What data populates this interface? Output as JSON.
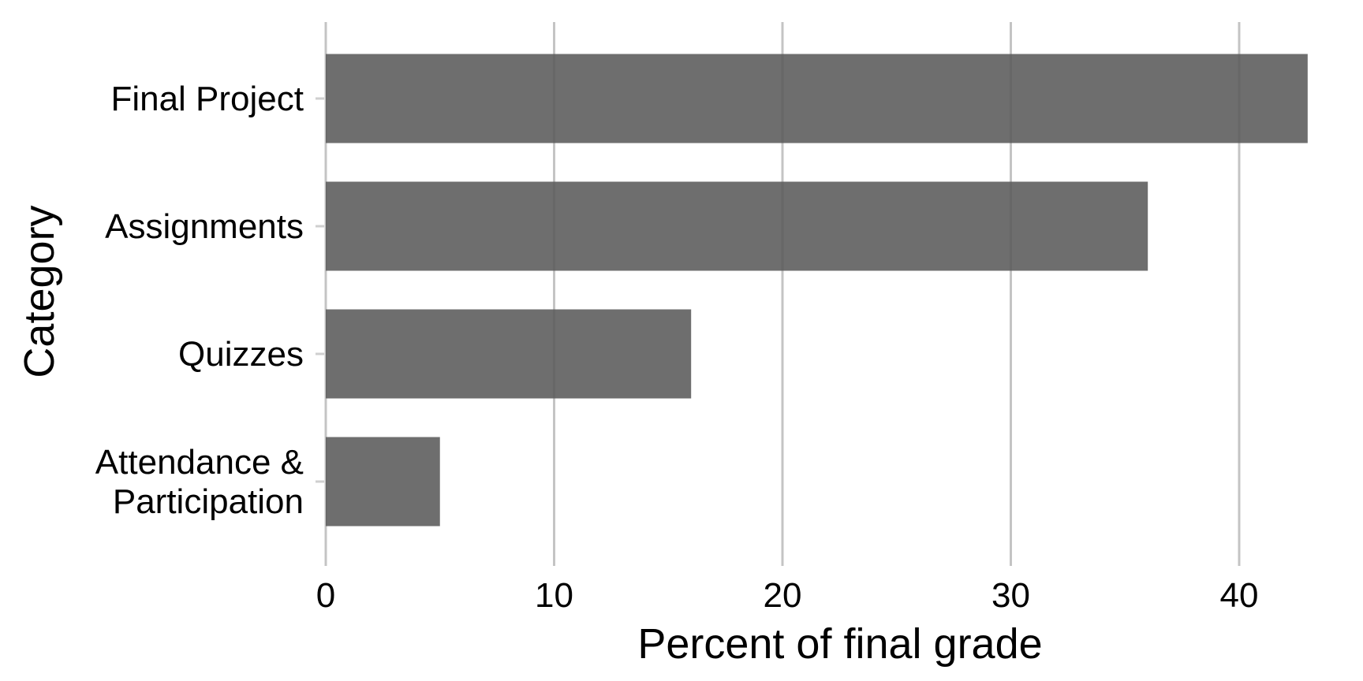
{
  "chart_data": {
    "type": "bar",
    "orientation": "horizontal",
    "categories": [
      [
        "Final Project"
      ],
      [
        "Assignments"
      ],
      [
        "Quizzes"
      ],
      [
        "Attendance &",
        "Participation"
      ]
    ],
    "values": [
      43,
      36,
      16,
      5
    ],
    "title": "",
    "xlabel": "Percent of final grade",
    "ylabel": "Category",
    "xlim": [
      0,
      45
    ],
    "x_ticks": [
      0,
      10,
      20,
      30,
      40
    ],
    "grid": "vertical major gridlines",
    "bar_color": "#6b6b6b",
    "grid_color": "#cfcfcf",
    "legend": "none"
  }
}
